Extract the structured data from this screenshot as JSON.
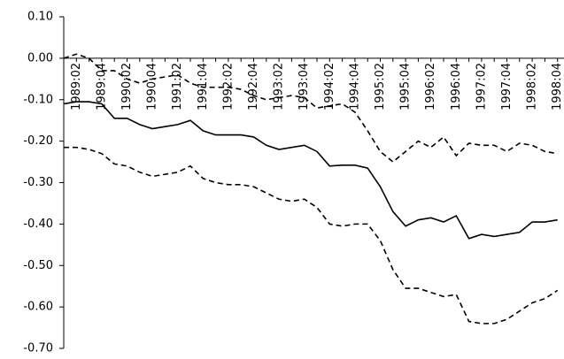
{
  "chart_data": {
    "type": "line",
    "categories": [
      null,
      "1989:02",
      null,
      "1989:04",
      null,
      "1990:02",
      null,
      "1990:04",
      null,
      "1991:02",
      null,
      "1991:04",
      null,
      "1992:02",
      null,
      "1992:04",
      null,
      "1993:02",
      null,
      "1993:04",
      null,
      "1994:02",
      null,
      "1994:04",
      null,
      "1995:02",
      null,
      "1995:04",
      null,
      "1996:02",
      null,
      "1996:04",
      null,
      "1997:02",
      null,
      "1997:04",
      null,
      "1998:02",
      null,
      "1998:04"
    ],
    "series": [
      {
        "color": "#000000",
        "dashed": false,
        "values": [
          -0.11,
          -0.105,
          -0.105,
          -0.11,
          -0.145,
          -0.145,
          -0.16,
          -0.17,
          -0.165,
          -0.16,
          -0.15,
          -0.175,
          -0.185,
          -0.185,
          -0.185,
          -0.19,
          -0.21,
          -0.22,
          -0.215,
          -0.21,
          -0.225,
          -0.26,
          -0.258,
          -0.258,
          -0.265,
          -0.31,
          -0.37,
          -0.405,
          -0.39,
          -0.385,
          -0.395,
          -0.38,
          -0.435,
          -0.425,
          -0.43,
          -0.425,
          -0.42,
          -0.395,
          -0.395,
          -0.39
        ]
      },
      {
        "color": "#000000",
        "dashed": true,
        "values": [
          0.0,
          0.01,
          0.0,
          -0.03,
          -0.03,
          -0.05,
          -0.06,
          -0.05,
          -0.045,
          -0.04,
          -0.06,
          -0.07,
          -0.07,
          -0.07,
          -0.075,
          -0.09,
          -0.1,
          -0.095,
          -0.09,
          -0.095,
          -0.12,
          -0.115,
          -0.11,
          -0.13,
          -0.175,
          -0.225,
          -0.25,
          -0.225,
          -0.2,
          -0.215,
          -0.19,
          -0.235,
          -0.205,
          -0.21,
          -0.21,
          -0.225,
          -0.205,
          -0.21,
          -0.225,
          -0.23
        ]
      },
      {
        "color": "#000000",
        "dashed": true,
        "values": [
          -0.215,
          -0.215,
          -0.22,
          -0.23,
          -0.255,
          -0.26,
          -0.275,
          -0.285,
          -0.28,
          -0.275,
          -0.26,
          -0.29,
          -0.3,
          -0.305,
          -0.305,
          -0.31,
          -0.325,
          -0.34,
          -0.345,
          -0.34,
          -0.36,
          -0.4,
          -0.405,
          -0.4,
          -0.4,
          -0.44,
          -0.51,
          -0.555,
          -0.555,
          -0.565,
          -0.575,
          -0.57,
          -0.635,
          -0.64,
          -0.64,
          -0.63,
          -0.61,
          -0.59,
          -0.58,
          -0.56
        ]
      }
    ],
    "ylim": [
      -0.7,
      0.1
    ],
    "yticks": [
      {
        "value": -0.7,
        "label": "-0.70"
      },
      {
        "value": -0.6,
        "label": "-0.60"
      },
      {
        "value": -0.5,
        "label": "-0.50"
      },
      {
        "value": -0.4,
        "label": "-0.40"
      },
      {
        "value": -0.3,
        "label": "-0.30"
      },
      {
        "value": -0.2,
        "label": "-0.20"
      },
      {
        "value": -0.1,
        "label": "-0.10"
      },
      {
        "value": 0.0,
        "label": "0.00"
      },
      {
        "value": 0.1,
        "label": "0.10"
      }
    ],
    "grid": false
  }
}
